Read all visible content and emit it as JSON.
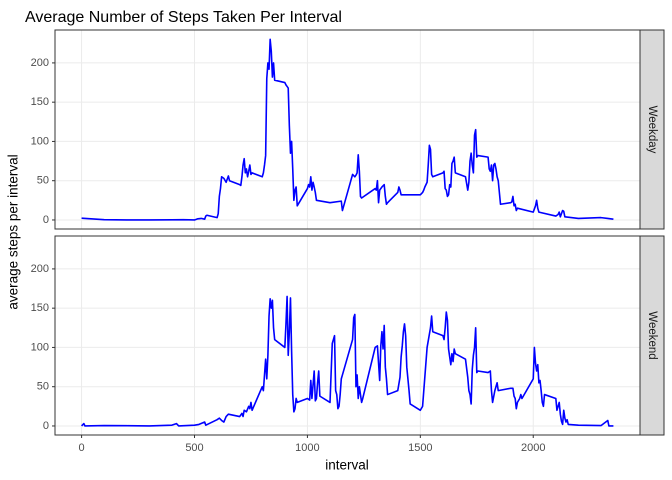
{
  "chart_data": {
    "type": "line",
    "title": "Average Number of Steps Taken Per Interval",
    "x_label": "interval",
    "y_label": "average steps per interval",
    "color": "#0000ff",
    "grid": true,
    "xlim": [
      -117.75,
      2472.75
    ],
    "xticks": [
      0,
      500,
      1000,
      1500,
      2000
    ],
    "ylim": [
      -11.5,
      241.9
    ],
    "yticks": [
      0,
      50,
      100,
      150,
      200
    ],
    "facets": [
      {
        "name": "Weekday",
        "x": [
          0,
          100,
          200,
          300,
          400,
          450,
          500,
          515,
          530,
          545,
          550,
          555,
          600,
          605,
          610,
          615,
          620,
          630,
          640,
          650,
          655,
          700,
          705,
          710,
          715,
          720,
          725,
          730,
          735,
          740,
          745,
          750,
          755,
          800,
          805,
          810,
          815,
          820,
          825,
          830,
          835,
          840,
          845,
          850,
          855,
          900,
          905,
          910,
          915,
          920,
          925,
          930,
          935,
          940,
          945,
          950,
          955,
          1000,
          1005,
          1010,
          1015,
          1020,
          1025,
          1030,
          1035,
          1040,
          1100,
          1150,
          1155,
          1200,
          1210,
          1215,
          1220,
          1225,
          1230,
          1235,
          1240,
          1300,
          1305,
          1310,
          1315,
          1320,
          1330,
          1340,
          1345,
          1350,
          1355,
          1400,
          1405,
          1410,
          1415,
          1500,
          1510,
          1515,
          1520,
          1525,
          1530,
          1535,
          1540,
          1545,
          1550,
          1555,
          1600,
          1605,
          1610,
          1615,
          1620,
          1625,
          1630,
          1635,
          1640,
          1645,
          1650,
          1655,
          1700,
          1710,
          1715,
          1720,
          1725,
          1730,
          1735,
          1740,
          1745,
          1750,
          1755,
          1800,
          1805,
          1810,
          1815,
          1820,
          1825,
          1830,
          1835,
          1840,
          1845,
          1850,
          1855,
          1900,
          1905,
          1910,
          1915,
          1920,
          1925,
          1930,
          2000,
          2010,
          2015,
          2020,
          2025,
          2100,
          2110,
          2115,
          2120,
          2130,
          2135,
          2140,
          2200,
          2300,
          2330,
          2355
        ],
        "values": [
          2.3,
          0.4,
          0,
          0,
          0.2,
          0.4,
          0,
          1.5,
          2,
          1,
          5,
          6,
          3,
          8,
          30,
          40,
          55,
          53,
          48,
          56,
          50,
          45,
          44,
          55,
          70,
          78,
          60,
          65,
          55,
          62,
          70,
          58,
          60,
          55,
          60,
          70,
          82,
          180,
          200,
          192,
          230,
          215,
          182,
          200,
          178,
          175,
          172,
          170,
          168,
          120,
          85,
          100,
          65,
          25,
          38,
          42,
          18,
          40,
          45,
          42,
          55,
          38,
          48,
          42,
          35,
          25,
          22,
          24,
          12,
          58,
          55,
          57,
          60,
          83,
          62,
          30,
          28,
          40,
          38,
          50,
          22,
          38,
          42,
          45,
          30,
          20,
          22,
          35,
          42,
          38,
          32,
          32,
          35,
          38,
          42,
          45,
          48,
          70,
          95,
          90,
          58,
          55,
          60,
          62,
          40,
          38,
          30,
          32,
          45,
          42,
          72,
          75,
          80,
          60,
          55,
          38,
          48,
          75,
          85,
          70,
          60,
          108,
          115,
          80,
          82,
          80,
          65,
          62,
          70,
          50,
          70,
          72,
          65,
          55,
          50,
          35,
          20,
          22,
          23,
          30,
          18,
          20,
          12,
          15,
          10,
          18,
          25,
          15,
          10,
          5,
          7,
          10,
          4,
          12,
          11,
          4,
          2,
          3,
          2,
          1
        ]
      },
      {
        "name": "Weekend",
        "x": [
          0,
          10,
          15,
          100,
          200,
          300,
          400,
          420,
          430,
          500,
          520,
          545,
          550,
          600,
          610,
          620,
          630,
          640,
          650,
          700,
          710,
          715,
          720,
          730,
          740,
          745,
          750,
          755,
          800,
          805,
          815,
          820,
          825,
          830,
          835,
          840,
          845,
          850,
          855,
          900,
          905,
          910,
          915,
          920,
          925,
          930,
          935,
          940,
          945,
          950,
          955,
          1000,
          1010,
          1015,
          1020,
          1030,
          1035,
          1040,
          1045,
          1050,
          1055,
          1100,
          1110,
          1115,
          1120,
          1125,
          1130,
          1135,
          1140,
          1145,
          1150,
          1155,
          1200,
          1205,
          1210,
          1215,
          1220,
          1225,
          1230,
          1235,
          1240,
          1245,
          1300,
          1310,
          1315,
          1320,
          1325,
          1330,
          1335,
          1340,
          1345,
          1350,
          1355,
          1400,
          1410,
          1415,
          1420,
          1425,
          1430,
          1435,
          1440,
          1445,
          1450,
          1455,
          1500,
          1510,
          1530,
          1545,
          1550,
          1555,
          1600,
          1605,
          1610,
          1615,
          1620,
          1625,
          1630,
          1635,
          1640,
          1645,
          1650,
          1655,
          1700,
          1710,
          1715,
          1720,
          1725,
          1730,
          1735,
          1740,
          1745,
          1750,
          1755,
          1800,
          1810,
          1815,
          1820,
          1830,
          1840,
          1845,
          1900,
          1910,
          1915,
          1920,
          1925,
          1930,
          1940,
          1945,
          1950,
          2000,
          2005,
          2010,
          2015,
          2020,
          2025,
          2030,
          2035,
          2040,
          2045,
          2050,
          2100,
          2105,
          2110,
          2115,
          2120,
          2125,
          2130,
          2135,
          2140,
          2145,
          2150,
          2155,
          2200,
          2300,
          2330,
          2335,
          2355
        ],
        "values": [
          0,
          3,
          0,
          0.5,
          0.3,
          0,
          1,
          3,
          0,
          1,
          2,
          5,
          1,
          8,
          10,
          7,
          5,
          12,
          15,
          12,
          16,
          12,
          20,
          18,
          25,
          22,
          30,
          20,
          50,
          45,
          85,
          60,
          90,
          140,
          162,
          150,
          160,
          125,
          110,
          100,
          130,
          165,
          90,
          120,
          163,
          95,
          40,
          18,
          22,
          35,
          30,
          35,
          33,
          58,
          35,
          70,
          32,
          35,
          55,
          70,
          38,
          30,
          105,
          110,
          115,
          45,
          40,
          22,
          25,
          40,
          60,
          65,
          110,
          138,
          142,
          50,
          65,
          35,
          50,
          40,
          30,
          35,
          100,
          102,
          80,
          58,
          102,
          120,
          98,
          128,
          75,
          60,
          40,
          45,
          62,
          88,
          102,
          120,
          130,
          115,
          75,
          60,
          45,
          28,
          20,
          25,
          100,
          125,
          140,
          120,
          115,
          110,
          125,
          145,
          135,
          98,
          88,
          78,
          92,
          82,
          98,
          92,
          85,
          62,
          45,
          40,
          28,
          72,
          90,
          100,
          125,
          68,
          70,
          68,
          70,
          45,
          30,
          45,
          55,
          45,
          48,
          48,
          38,
          35,
          22,
          30,
          35,
          40,
          35,
          60,
          100,
          80,
          70,
          78,
          55,
          58,
          45,
          30,
          25,
          40,
          35,
          20,
          25,
          30,
          15,
          6,
          2,
          20,
          10,
          5,
          8,
          2,
          1,
          0.5,
          7,
          0,
          0
        ]
      }
    ]
  }
}
